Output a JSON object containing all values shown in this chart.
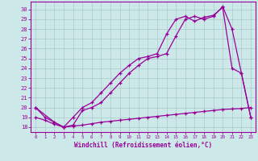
{
  "xlabel": "Windchill (Refroidissement éolien,°C)",
  "bg_color": "#cce8e8",
  "line_color": "#990099",
  "grid_color": "#aacccc",
  "ylim": [
    17.5,
    30.8
  ],
  "xlim": [
    -0.5,
    23.5
  ],
  "yticks": [
    18,
    19,
    20,
    21,
    22,
    23,
    24,
    25,
    26,
    27,
    28,
    29,
    30
  ],
  "xticks": [
    0,
    1,
    2,
    3,
    4,
    5,
    6,
    7,
    8,
    9,
    10,
    11,
    12,
    13,
    14,
    15,
    16,
    17,
    18,
    19,
    20,
    21,
    22,
    23
  ],
  "line1_x": [
    0,
    1,
    2,
    3,
    4,
    5,
    6,
    7,
    8,
    9,
    10,
    11,
    12,
    13,
    14,
    15,
    16,
    17,
    18,
    19,
    20,
    21,
    22,
    23
  ],
  "line1_y": [
    19.0,
    18.7,
    18.3,
    18.0,
    18.1,
    18.2,
    18.35,
    18.5,
    18.6,
    18.7,
    18.8,
    18.9,
    19.0,
    19.1,
    19.2,
    19.3,
    19.4,
    19.5,
    19.6,
    19.7,
    19.8,
    19.85,
    19.9,
    20.0
  ],
  "line2_x": [
    0,
    1,
    2,
    3,
    4,
    5,
    6,
    7,
    8,
    9,
    10,
    11,
    12,
    13,
    14,
    15,
    16,
    17,
    18,
    19,
    20,
    21,
    22,
    23
  ],
  "line2_y": [
    20.0,
    19.0,
    18.5,
    18.0,
    18.2,
    19.7,
    20.0,
    20.5,
    21.5,
    22.5,
    23.5,
    24.3,
    25.0,
    25.2,
    25.5,
    27.3,
    29.0,
    29.3,
    29.0,
    29.3,
    30.3,
    28.0,
    23.5,
    19.0
  ],
  "line3_x": [
    0,
    2,
    3,
    4,
    5,
    6,
    7,
    8,
    9,
    10,
    11,
    12,
    13,
    14,
    15,
    16,
    17,
    18,
    19,
    20,
    21,
    22,
    23
  ],
  "line3_y": [
    20.0,
    18.5,
    18.0,
    19.0,
    20.0,
    20.5,
    21.5,
    22.5,
    23.5,
    24.3,
    25.0,
    25.2,
    25.5,
    27.5,
    29.0,
    29.3,
    28.8,
    29.2,
    29.4,
    30.2,
    24.0,
    23.5,
    19.0
  ]
}
